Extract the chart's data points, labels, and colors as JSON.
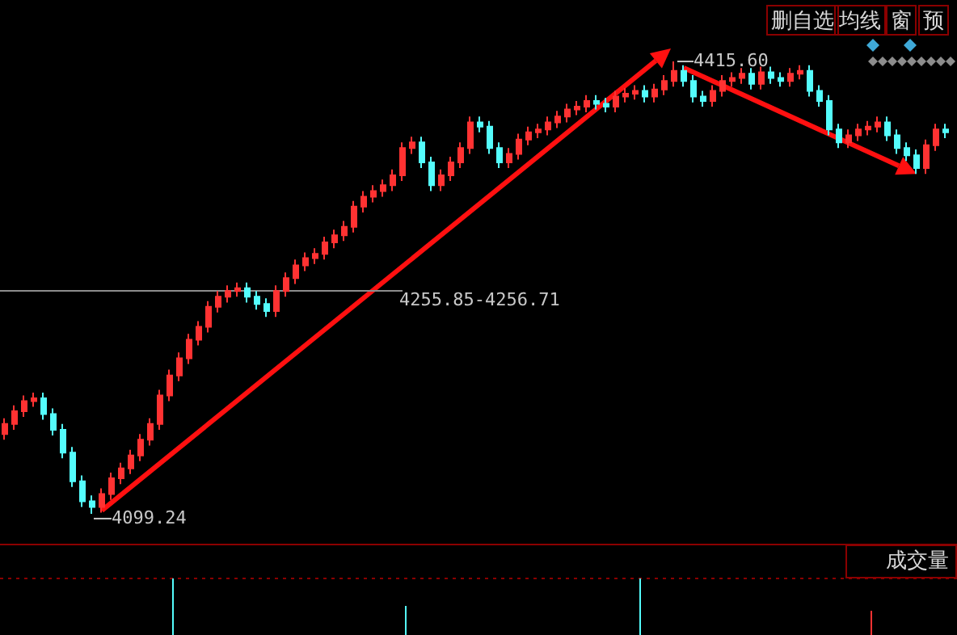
{
  "chart_data": {
    "type": "candlestick",
    "categories": [
      null,
      null,
      null,
      null,
      null,
      null,
      null,
      null,
      null,
      null,
      null,
      null,
      null,
      null,
      null,
      null,
      null,
      null,
      null,
      null,
      null,
      null,
      null,
      null,
      null,
      null,
      null,
      null,
      null,
      null,
      null,
      null,
      null,
      null,
      null,
      null,
      null,
      null,
      null,
      null,
      null,
      null,
      null,
      null,
      null,
      null,
      null,
      null,
      null,
      null,
      null,
      null,
      null,
      null,
      null,
      null,
      null,
      null,
      null,
      null,
      null,
      null,
      null,
      null,
      null,
      null,
      null,
      null,
      null,
      null,
      null,
      null,
      null,
      null,
      null,
      null,
      null,
      null,
      null,
      null,
      null,
      null,
      null,
      null,
      null,
      null,
      null,
      null,
      null,
      null,
      null,
      null,
      null,
      null,
      null,
      null,
      null,
      null
    ],
    "ohlc": [
      [
        4155,
        4166,
        4151,
        4162
      ],
      [
        4162,
        4175,
        4158,
        4171
      ],
      [
        4171,
        4182,
        4167,
        4178
      ],
      [
        4178,
        4184,
        4174,
        4180
      ],
      [
        4180,
        4184,
        4165,
        4169
      ],
      [
        4169,
        4173,
        4154,
        4158
      ],
      [
        4158,
        4162,
        4138,
        4142
      ],
      [
        4142,
        4146,
        4118,
        4122
      ],
      [
        4122,
        4126,
        4104,
        4108
      ],
      [
        4108,
        4112,
        4099.24,
        4104
      ],
      [
        4104,
        4117,
        4100,
        4113
      ],
      [
        4113,
        4128,
        4109,
        4124
      ],
      [
        4124,
        4135,
        4120,
        4131
      ],
      [
        4131,
        4144,
        4127,
        4140
      ],
      [
        4140,
        4155,
        4136,
        4151
      ],
      [
        4151,
        4166,
        4147,
        4162
      ],
      [
        4162,
        4186,
        4158,
        4182
      ],
      [
        4182,
        4200,
        4178,
        4196
      ],
      [
        4196,
        4212,
        4192,
        4208
      ],
      [
        4208,
        4225,
        4204,
        4221
      ],
      [
        4221,
        4234,
        4217,
        4230
      ],
      [
        4230,
        4248,
        4226,
        4244
      ],
      [
        4244,
        4255,
        4240,
        4251
      ],
      [
        4251,
        4259,
        4247,
        4255
      ],
      [
        4255,
        4261,
        4251,
        4257
      ],
      [
        4257,
        4261,
        4247,
        4251
      ],
      [
        4251,
        4255,
        4242,
        4246
      ],
      [
        4246,
        4250,
        4237,
        4241
      ],
      [
        4241,
        4259,
        4237,
        4255
      ],
      [
        4255,
        4268,
        4251,
        4264
      ],
      [
        4264,
        4277,
        4260,
        4273
      ],
      [
        4273,
        4282,
        4269,
        4278
      ],
      [
        4278,
        4285,
        4274,
        4281
      ],
      [
        4281,
        4293,
        4277,
        4289
      ],
      [
        4289,
        4298,
        4285,
        4294
      ],
      [
        4294,
        4304,
        4290,
        4300
      ],
      [
        4300,
        4318,
        4296,
        4314
      ],
      [
        4314,
        4325,
        4310,
        4321
      ],
      [
        4321,
        4329,
        4317,
        4325
      ],
      [
        4325,
        4333,
        4321,
        4329
      ],
      [
        4329,
        4340,
        4325,
        4336
      ],
      [
        4336,
        4359,
        4332,
        4355
      ],
      [
        4355,
        4363,
        4351,
        4359
      ],
      [
        4359,
        4363,
        4341,
        4345
      ],
      [
        4345,
        4349,
        4325,
        4329
      ],
      [
        4329,
        4340,
        4325,
        4336
      ],
      [
        4336,
        4349,
        4332,
        4345
      ],
      [
        4345,
        4359,
        4341,
        4355
      ],
      [
        4355,
        4377,
        4351,
        4373
      ],
      [
        4373,
        4377,
        4366,
        4370
      ],
      [
        4370,
        4374,
        4351,
        4355
      ],
      [
        4355,
        4359,
        4341,
        4345
      ],
      [
        4345,
        4355,
        4341,
        4351
      ],
      [
        4351,
        4365,
        4347,
        4361
      ],
      [
        4361,
        4370,
        4357,
        4366
      ],
      [
        4366,
        4372,
        4362,
        4368
      ],
      [
        4368,
        4377,
        4364,
        4373
      ],
      [
        4373,
        4381,
        4369,
        4377
      ],
      [
        4377,
        4386,
        4373,
        4382
      ],
      [
        4382,
        4388,
        4378,
        4384
      ],
      [
        4384,
        4392,
        4380,
        4388
      ],
      [
        4388,
        4392,
        4382,
        4386
      ],
      [
        4386,
        4390,
        4380,
        4384
      ],
      [
        4384,
        4395,
        4380,
        4391
      ],
      [
        4391,
        4397,
        4387,
        4393
      ],
      [
        4393,
        4399,
        4389,
        4395
      ],
      [
        4395,
        4399,
        4387,
        4391
      ],
      [
        4391,
        4400,
        4387,
        4396
      ],
      [
        4396,
        4406,
        4392,
        4402
      ],
      [
        4402,
        4415.6,
        4398,
        4409
      ],
      [
        4409,
        4413,
        4398,
        4402
      ],
      [
        4402,
        4406,
        4387,
        4391
      ],
      [
        4391,
        4395,
        4384,
        4388
      ],
      [
        4388,
        4399,
        4384,
        4395
      ],
      [
        4395,
        4406,
        4391,
        4402
      ],
      [
        4402,
        4408,
        4398,
        4404
      ],
      [
        4404,
        4411,
        4400,
        4407
      ],
      [
        4407,
        4411,
        4396,
        4400
      ],
      [
        4400,
        4412,
        4396,
        4408
      ],
      [
        4408,
        4412,
        4400,
        4404
      ],
      [
        4404,
        4408,
        4398,
        4402
      ],
      [
        4402,
        4411,
        4398,
        4407
      ],
      [
        4407,
        4413,
        4403,
        4409
      ],
      [
        4409,
        4413,
        4391,
        4395
      ],
      [
        4395,
        4399,
        4384,
        4388
      ],
      [
        4388,
        4392,
        4364,
        4368
      ],
      [
        4368,
        4372,
        4355,
        4359
      ],
      [
        4359,
        4368,
        4355,
        4364
      ],
      [
        4364,
        4372,
        4360,
        4368
      ],
      [
        4368,
        4374,
        4364,
        4370
      ],
      [
        4370,
        4377,
        4366,
        4373
      ],
      [
        4373,
        4377,
        4360,
        4364
      ],
      [
        4364,
        4368,
        4351,
        4355
      ],
      [
        4355,
        4359,
        4346,
        4350
      ],
      [
        4350,
        4354,
        4337,
        4341
      ],
      [
        4341,
        4361,
        4337,
        4357
      ],
      [
        4357,
        4372,
        4353,
        4368
      ],
      [
        4368,
        4372,
        4362,
        4366
      ]
    ],
    "colors": [
      "#ff3232",
      "#ff3232",
      "#ff3232",
      "#ff3232",
      "#54fcfc",
      "#54fcfc",
      "#54fcfc",
      "#54fcfc",
      "#54fcfc",
      "#54fcfc",
      "#ff3232",
      "#ff3232",
      "#ff3232",
      "#ff3232",
      "#ff3232",
      "#ff3232",
      "#ff3232",
      "#ff3232",
      "#ff3232",
      "#ff3232",
      "#ff3232",
      "#ff3232",
      "#ff3232",
      "#ff3232",
      "#ff3232",
      "#54fcfc",
      "#54fcfc",
      "#54fcfc",
      "#ff3232",
      "#ff3232",
      "#ff3232",
      "#ff3232",
      "#ff3232",
      "#ff3232",
      "#ff3232",
      "#ff3232",
      "#ff3232",
      "#ff3232",
      "#ff3232",
      "#ff3232",
      "#ff3232",
      "#ff3232",
      "#ff3232",
      "#54fcfc",
      "#54fcfc",
      "#ff3232",
      "#ff3232",
      "#ff3232",
      "#ff3232",
      "#54fcfc",
      "#54fcfc",
      "#54fcfc",
      "#ff3232",
      "#ff3232",
      "#ff3232",
      "#ff3232",
      "#ff3232",
      "#ff3232",
      "#ff3232",
      "#ff3232",
      "#ff3232",
      "#54fcfc",
      "#54fcfc",
      "#ff3232",
      "#ff3232",
      "#ff3232",
      "#54fcfc",
      "#ff3232",
      "#ff3232",
      "#ff3232",
      "#54fcfc",
      "#54fcfc",
      "#54fcfc",
      "#ff3232",
      "#ff3232",
      "#ff3232",
      "#ff3232",
      "#54fcfc",
      "#ff3232",
      "#54fcfc",
      "#54fcfc",
      "#ff3232",
      "#ff3232",
      "#54fcfc",
      "#54fcfc",
      "#54fcfc",
      "#54fcfc",
      "#ff3232",
      "#ff3232",
      "#ff3232",
      "#ff3232",
      "#54fcfc",
      "#54fcfc",
      "#54fcfc",
      "#54fcfc",
      "#ff3232",
      "#ff3232",
      "#54fcfc"
    ],
    "tick_labels": false,
    "annotations": [
      "4415.60",
      "4099.24",
      "4255.85-4256.71",
      "删自选",
      "均线",
      "窗",
      "预",
      "成交量"
    ]
  }
}
